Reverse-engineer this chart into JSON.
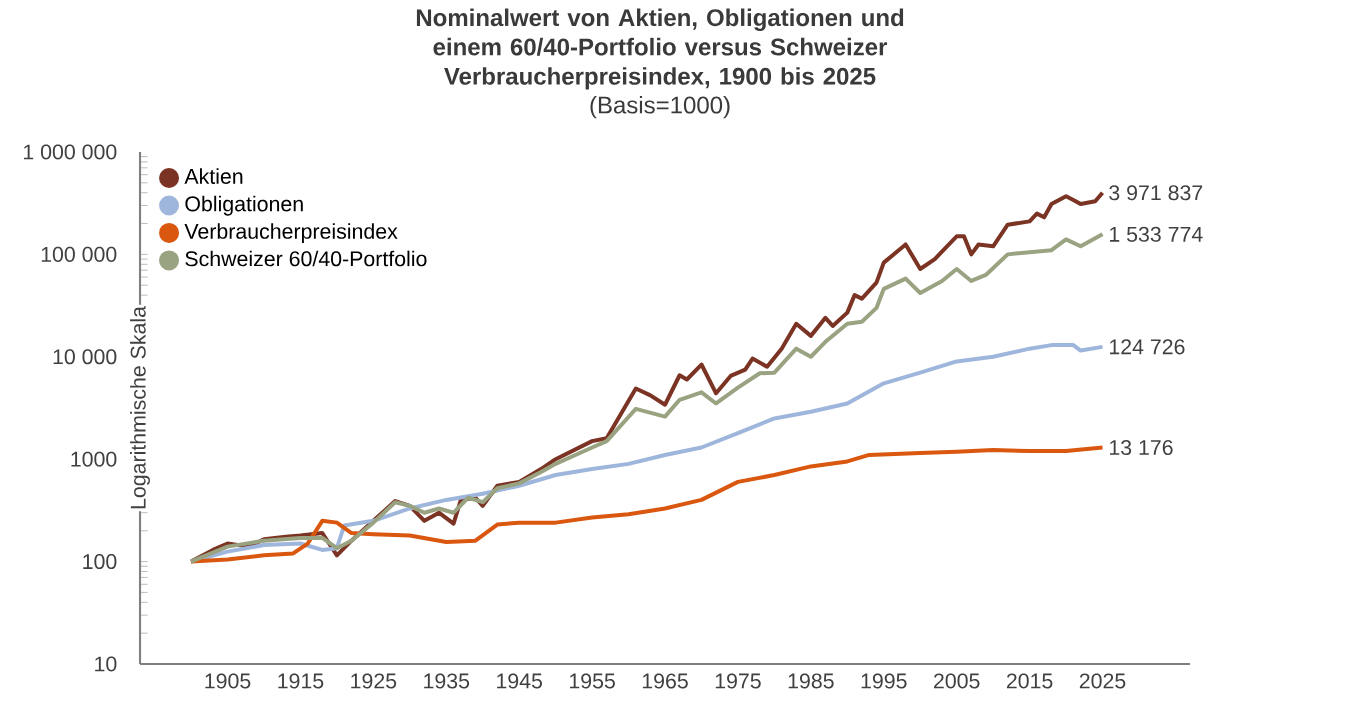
{
  "chart_data": {
    "type": "line",
    "title": "Nominalwert von Aktien, Obligationen und einem 60/40-Portfolio versus Schweizer Verbraucherpreisindex, 1900 bis 2025",
    "subtitle": "(Basis=1000)",
    "ylabel": "Logarithmische Skala",
    "log": "y",
    "xlim": [
      1893,
      2037
    ],
    "xticks": [
      1905,
      1915,
      1925,
      1935,
      1945,
      1955,
      1965,
      1975,
      1985,
      1995,
      2005,
      2015,
      2025
    ],
    "ylim": [
      10,
      1000000
    ],
    "yticks": [
      10,
      100,
      1000,
      {
        "value": 10000,
        "label": "10 000"
      },
      {
        "value": 100000,
        "label": "100 000"
      },
      {
        "value": 1000000,
        "label": "1 000 000"
      }
    ],
    "grid": false,
    "legend": "top left",
    "line_style": "solid",
    "series": [
      {
        "name": "Aktien",
        "color": "#7b3323",
        "x": [
          1900,
          1903,
          1905,
          1908,
          1910,
          1913,
          1915,
          1918,
          1920,
          1922,
          1925,
          1928,
          1930,
          1932,
          1934,
          1936,
          1937,
          1939,
          1940,
          1942,
          1945,
          1948,
          1950,
          1955,
          1957,
          1961,
          1963,
          1965,
          1967,
          1968,
          1970,
          1972,
          1974,
          1976,
          1977,
          1979,
          1981,
          1983,
          1985,
          1987,
          1988,
          1990,
          1991,
          1992,
          1994,
          1995,
          1998,
          2000,
          2002,
          2005,
          2006,
          2007,
          2008,
          2010,
          2012,
          2015,
          2016,
          2017,
          2018,
          2020,
          2021,
          2022,
          2024,
          2025
        ],
        "values": [
          100,
          130,
          150,
          140,
          165,
          175,
          180,
          190,
          115,
          160,
          250,
          390,
          350,
          250,
          300,
          235,
          400,
          420,
          350,
          550,
          600,
          800,
          1000,
          1500,
          1600,
          4900,
          4200,
          3400,
          6600,
          6000,
          8400,
          4400,
          6500,
          7500,
          9600,
          8000,
          12000,
          21000,
          16000,
          24000,
          20000,
          27000,
          40000,
          37000,
          53000,
          83000,
          125000,
          72000,
          90000,
          150000,
          150000,
          100000,
          125000,
          120000,
          195000,
          210000,
          250000,
          230000,
          310000,
          370000,
          340000,
          310000,
          330000,
          400000
        ]
      },
      {
        "name": "Obligationen",
        "color": "#9fb6dc",
        "x": [
          1900,
          1905,
          1910,
          1915,
          1918,
          1920,
          1921,
          1925,
          1930,
          1935,
          1940,
          1945,
          1950,
          1955,
          1960,
          1965,
          1970,
          1975,
          1980,
          1985,
          1990,
          1995,
          2000,
          2005,
          2010,
          2015,
          2018,
          2021,
          2022,
          2025
        ],
        "values": [
          100,
          125,
          145,
          150,
          130,
          135,
          225,
          250,
          330,
          400,
          460,
          550,
          700,
          800,
          900,
          1100,
          1300,
          1800,
          2500,
          2900,
          3500,
          5500,
          7000,
          9000,
          10000,
          12000,
          13000,
          13000,
          11500,
          12500
        ]
      },
      {
        "name": "Verbraucherpreisindex",
        "color": "#d9570f",
        "x": [
          1900,
          1905,
          1910,
          1914,
          1916,
          1918,
          1920,
          1922,
          1925,
          1930,
          1935,
          1939,
          1942,
          1945,
          1950,
          1955,
          1960,
          1965,
          1970,
          1975,
          1980,
          1985,
          1990,
          1993,
          2000,
          2005,
          2010,
          2015,
          2020,
          2025
        ],
        "values": [
          100,
          105,
          115,
          120,
          150,
          250,
          240,
          190,
          185,
          180,
          155,
          160,
          230,
          240,
          240,
          270,
          290,
          330,
          400,
          600,
          700,
          850,
          950,
          1100,
          1150,
          1180,
          1230,
          1200,
          1200,
          1300
        ]
      },
      {
        "name": "Schweizer 60/40-Portfolio",
        "color": "#9aa381",
        "x": [
          1900,
          1905,
          1910,
          1915,
          1918,
          1920,
          1922,
          1925,
          1928,
          1930,
          1932,
          1934,
          1936,
          1938,
          1940,
          1942,
          1945,
          1948,
          1950,
          1955,
          1957,
          1961,
          1965,
          1967,
          1970,
          1972,
          1975,
          1978,
          1980,
          1983,
          1985,
          1987,
          1990,
          1992,
          1994,
          1995,
          1998,
          2000,
          2003,
          2005,
          2007,
          2009,
          2012,
          2015,
          2018,
          2020,
          2022,
          2025
        ],
        "values": [
          100,
          140,
          160,
          170,
          170,
          135,
          160,
          240,
          380,
          350,
          300,
          330,
          300,
          420,
          380,
          520,
          580,
          750,
          900,
          1300,
          1500,
          3100,
          2600,
          3800,
          4500,
          3500,
          5000,
          6900,
          7000,
          12000,
          10000,
          14000,
          21000,
          22000,
          30000,
          46000,
          58000,
          42000,
          55000,
          72000,
          55000,
          63000,
          100000,
          105000,
          110000,
          140000,
          120000,
          157000
        ]
      }
    ],
    "annotations": [
      "3 971 837",
      "1 533 774",
      "124 726",
      "13 176"
    ]
  }
}
